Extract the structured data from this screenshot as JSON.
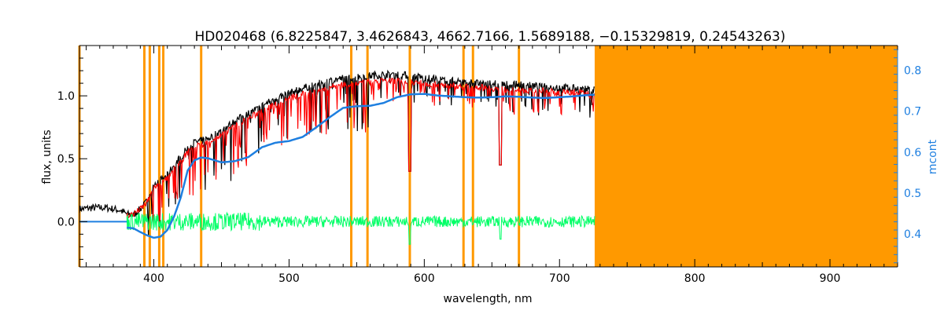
{
  "chart_data": {
    "type": "line",
    "title": "HD020468   (6.8225847, 3.4626843, 4662.7166, 1.5689188, −0.15329819, 0.24543263)",
    "xlabel": "wavelength, nm",
    "ylabel": "flux, units",
    "ylabel_right": "mcont",
    "xlim": [
      345,
      950
    ],
    "ylim": [
      -0.36,
      1.4
    ],
    "ylim_right": [
      0.32,
      0.86
    ],
    "x_ticks": [
      400,
      500,
      600,
      700,
      800,
      900
    ],
    "y_ticks": [
      0.0,
      0.5,
      1.0
    ],
    "y_ticks_right": [
      0.4,
      0.5,
      0.6,
      0.7,
      0.8
    ],
    "grid": false,
    "legend": "none",
    "colors": {
      "observed": "#000000",
      "model": "#ff0000",
      "residual": "#00ff66",
      "continuum": "#1e7fe0",
      "mask": "#ff9900",
      "axes": "#000000",
      "right_axis": "#1e7fe0"
    },
    "masked_range": [
      726,
      950
    ],
    "masked_lines": [
      345,
      393,
      397,
      404,
      407,
      435,
      546,
      558,
      589.3,
      629,
      636,
      670
    ],
    "series": [
      {
        "role": "observed",
        "x": [
          345,
          355,
          365,
          375,
          380,
          385,
          390,
          395,
          400,
          405,
          410,
          415,
          420,
          425,
          430,
          435,
          440,
          450,
          460,
          470,
          480,
          490,
          500,
          510,
          520,
          530,
          540,
          550,
          560,
          570,
          580,
          590,
          600,
          610,
          620,
          630,
          640,
          650,
          660,
          670,
          680,
          690,
          700,
          710,
          720,
          726
        ],
        "y": [
          0.1,
          0.11,
          0.11,
          0.09,
          0.06,
          0.05,
          0.1,
          0.16,
          0.3,
          0.33,
          0.37,
          0.45,
          0.52,
          0.58,
          0.63,
          0.64,
          0.66,
          0.72,
          0.8,
          0.86,
          0.92,
          0.98,
          1.02,
          1.06,
          1.09,
          1.12,
          1.14,
          1.15,
          1.16,
          1.17,
          1.17,
          1.16,
          1.14,
          1.13,
          1.12,
          1.11,
          1.1,
          1.1,
          1.09,
          1.09,
          1.08,
          1.07,
          1.07,
          1.06,
          1.05,
          1.05
        ]
      },
      {
        "role": "model",
        "x": [
          380,
          385,
          390,
          395,
          400,
          405,
          410,
          415,
          420,
          425,
          430,
          435,
          440,
          450,
          460,
          470,
          480,
          490,
          500,
          510,
          520,
          530,
          540,
          550,
          560,
          570,
          580,
          590,
          600,
          610,
          620,
          630,
          640,
          650,
          660,
          670,
          680,
          690,
          700,
          710,
          720,
          726
        ],
        "y": [
          0.05,
          0.06,
          0.1,
          0.15,
          0.27,
          0.3,
          0.34,
          0.42,
          0.48,
          0.55,
          0.6,
          0.61,
          0.63,
          0.69,
          0.76,
          0.82,
          0.88,
          0.93,
          0.98,
          1.01,
          1.04,
          1.07,
          1.09,
          1.1,
          1.11,
          1.12,
          1.12,
          1.11,
          1.1,
          1.09,
          1.08,
          1.07,
          1.07,
          1.06,
          1.05,
          1.05,
          1.04,
          1.04,
          1.03,
          1.03,
          1.02,
          1.02
        ]
      },
      {
        "role": "residual",
        "x": [
          380,
          726
        ],
        "y": [
          0.0,
          0.0
        ],
        "noise_amplitude": 0.045
      },
      {
        "role": "continuum",
        "axis": "right",
        "x": [
          380,
          385,
          390,
          395,
          400,
          405,
          410,
          415,
          420,
          425,
          430,
          435,
          440,
          450,
          460,
          470,
          480,
          490,
          500,
          510,
          520,
          530,
          540,
          550,
          560,
          570,
          580,
          590,
          600,
          610,
          620,
          630,
          640,
          650,
          660,
          670,
          680,
          690,
          700,
          710,
          720,
          726
        ],
        "y": [
          0.416,
          0.414,
          0.405,
          0.397,
          0.391,
          0.394,
          0.41,
          0.443,
          0.49,
          0.555,
          0.58,
          0.587,
          0.585,
          0.575,
          0.578,
          0.588,
          0.612,
          0.623,
          0.627,
          0.637,
          0.66,
          0.685,
          0.708,
          0.712,
          0.713,
          0.72,
          0.734,
          0.741,
          0.742,
          0.738,
          0.736,
          0.734,
          0.733,
          0.734,
          0.736,
          0.735,
          0.733,
          0.732,
          0.734,
          0.736,
          0.739,
          0.74
        ]
      }
    ]
  }
}
